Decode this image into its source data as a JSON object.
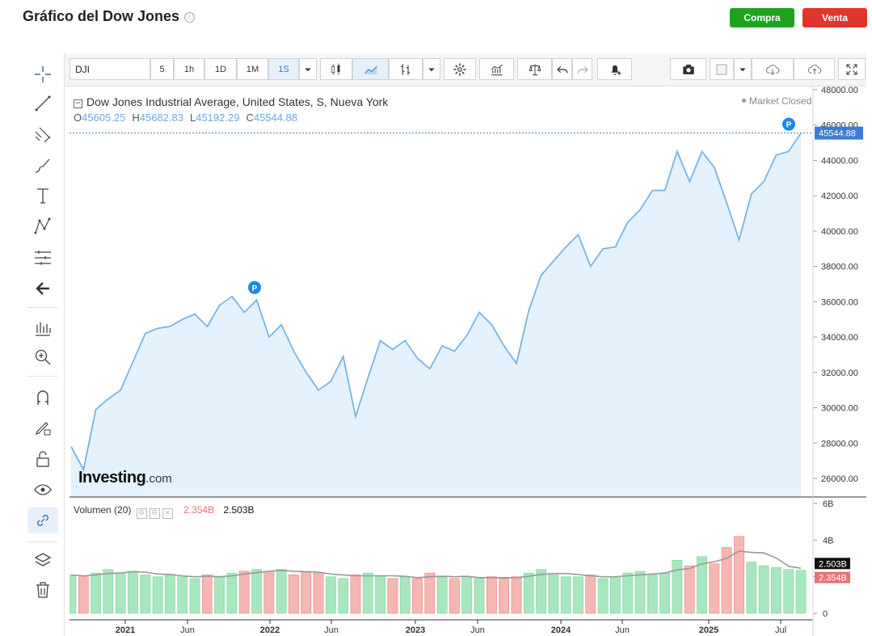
{
  "header": {
    "title": "Gráfico del Dow Jones",
    "info_icon": "ⓘ",
    "buy_label": "Compra",
    "sell_label": "Venta",
    "buy_color": "#1fa31f",
    "sell_color": "#e0352b"
  },
  "toolbar": {
    "symbol": "DJI",
    "intervals": [
      "5",
      "1h",
      "1D",
      "1M",
      "1S"
    ],
    "active_interval": "1S",
    "icons": [
      "chevron-down-icon",
      "candles-icon",
      "area-chart-icon",
      "bars-icon",
      "settings-icon",
      "indicators-icon",
      "compare-icon",
      "undo-icon",
      "redo-icon",
      "alert-icon",
      "camera-icon",
      "color-box-icon",
      "cloud-download-icon",
      "cloud-upload-icon",
      "fullscreen-icon"
    ]
  },
  "left_tools": [
    "crosshair-icon",
    "trend-line-icon",
    "fib-icon",
    "brush-icon",
    "text-icon",
    "pattern-icon",
    "gann-icon",
    "arrow-left-icon",
    "measure-icon",
    "zoom-icon",
    "magnet-icon",
    "lock-draw-icon",
    "unlock-icon",
    "eye-icon",
    "link-icon",
    "layers-icon",
    "trash-icon"
  ],
  "legend": {
    "title": "Dow Jones Industrial Average, United States, S, Nueva York",
    "o_label": "O",
    "o": "45605.25",
    "h_label": "H",
    "h": "45682.83",
    "l_label": "L",
    "l": "45192.29",
    "c_label": "C",
    "c": "45544.88",
    "market_status": "Market Closed",
    "price_tag": "45544.88",
    "marker": "P"
  },
  "watermark": {
    "brand": "Investing",
    "suffix": ".com"
  },
  "volume": {
    "label": "Volumen (20)",
    "value_red": "2.354B",
    "value_black": "2.503B",
    "axis_ticks": [
      "6B",
      "4B",
      "2B",
      "0"
    ],
    "tag_black": "2.503B",
    "tag_red": "2.354B"
  },
  "chart_data": {
    "type": "area",
    "title": "Dow Jones Industrial Average, United States, S, Nueva York",
    "y_ticks": [
      "48000.00",
      "46000.00",
      "44000.00",
      "42000.00",
      "40000.00",
      "38000.00",
      "36000.00",
      "34000.00",
      "32000.00",
      "30000.00",
      "28000.00",
      "26000.00"
    ],
    "ylim": [
      25000,
      48000
    ],
    "x_ticks": [
      "2021",
      "Jun",
      "2022",
      "Jun",
      "2023",
      "Jun",
      "2024",
      "Jun",
      "2025",
      "Jul"
    ],
    "line_color": "#7ab3e0",
    "fill_color": "#e3f2fc",
    "x": [
      "2020-10",
      "2020-11",
      "2020-12",
      "2021-01",
      "2021-02",
      "2021-03",
      "2021-04",
      "2021-05",
      "2021-06",
      "2021-07",
      "2021-08",
      "2021-09",
      "2021-10",
      "2021-11",
      "2021-12",
      "2022-01",
      "2022-02",
      "2022-03",
      "2022-04",
      "2022-05",
      "2022-06",
      "2022-07",
      "2022-08",
      "2022-09",
      "2022-10",
      "2022-11",
      "2022-12",
      "2023-01",
      "2023-02",
      "2023-03",
      "2023-04",
      "2023-05",
      "2023-06",
      "2023-07",
      "2023-08",
      "2023-09",
      "2023-10",
      "2023-11",
      "2023-12",
      "2024-01",
      "2024-02",
      "2024-03",
      "2024-04",
      "2024-05",
      "2024-06",
      "2024-07",
      "2024-08",
      "2024-09",
      "2024-10",
      "2024-11",
      "2024-12",
      "2025-01",
      "2025-02",
      "2025-03",
      "2025-04",
      "2025-05",
      "2025-06",
      "2025-07",
      "2025-08",
      "2025-09"
    ],
    "values": [
      27800,
      26500,
      29900,
      30500,
      31000,
      32600,
      34200,
      34500,
      34600,
      35000,
      35300,
      34600,
      35800,
      36300,
      35400,
      36100,
      34000,
      34700,
      33200,
      32000,
      31000,
      31500,
      32900,
      29500,
      31700,
      33800,
      33300,
      33800,
      32800,
      32200,
      33500,
      33200,
      34100,
      35400,
      34700,
      33500,
      32500,
      35500,
      37500,
      38300,
      39100,
      39800,
      38000,
      39000,
      39100,
      40500,
      41200,
      42300,
      42300,
      44500,
      42800,
      44500,
      43600,
      41600,
      39500,
      42100,
      42800,
      44300,
      44500,
      45545
    ],
    "volume_values": [
      2.1,
      2.0,
      2.2,
      2.4,
      2.2,
      2.3,
      2.1,
      2.0,
      2.1,
      2.0,
      1.9,
      2.1,
      2.0,
      2.2,
      2.3,
      2.4,
      2.3,
      2.4,
      2.1,
      2.3,
      2.2,
      2.0,
      1.9,
      2.1,
      2.2,
      2.0,
      1.9,
      2.0,
      1.9,
      2.2,
      2.0,
      1.9,
      2.0,
      1.9,
      2.0,
      1.9,
      2.0,
      2.2,
      2.4,
      2.1,
      2.0,
      2.0,
      2.1,
      1.9,
      2.0,
      2.2,
      2.3,
      2.1,
      2.2,
      2.9,
      2.6,
      3.1,
      2.7,
      3.6,
      4.2,
      2.8,
      2.6,
      2.5,
      2.4,
      2.35
    ],
    "volume_ylim": [
      0,
      6
    ]
  }
}
